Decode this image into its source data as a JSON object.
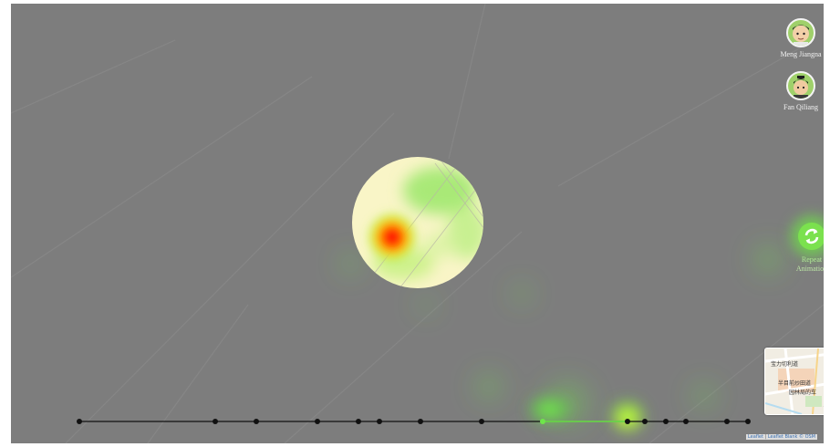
{
  "map": {
    "type": "heatmap",
    "theme_colors": {
      "background": "#7d7d7d",
      "spotlight_fill": "#f9f5c7",
      "heat_green": "#5ee33b",
      "heat_yellow": "#e9f03a",
      "heat_red": "#ff1a00",
      "timeline_line": "#111111",
      "timeline_active": "#6ee64a"
    }
  },
  "users": [
    {
      "name": "Meng Jiangna",
      "icon": "avatar-icon"
    },
    {
      "name": "Fan Qiliang",
      "icon": "avatar-icon"
    }
  ],
  "repeat": {
    "line1": "Repeat",
    "line2": "Animation",
    "icon": "refresh-icon"
  },
  "minimap": {
    "labels": [
      "宝力切利道",
      "半目前炒田道",
      "园林局的车"
    ],
    "toggle_icon": "expand-arrow-icon"
  },
  "attribution": {
    "part1": "Leaflet",
    "part2": "Leaflet Blank",
    "part3": "© OSM"
  },
  "timeline": {
    "stops": 16,
    "active_stop": 10,
    "icon": "timeline-stop-icon"
  }
}
